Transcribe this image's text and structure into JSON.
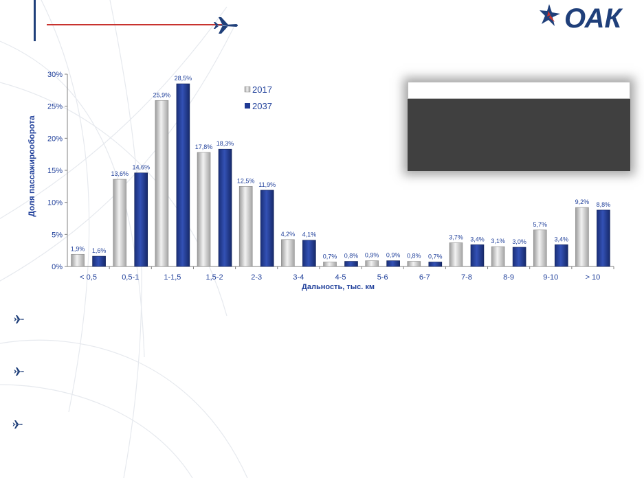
{
  "colors": {
    "brand_navy": "#1f3f7a",
    "brand_red": "#c8332e",
    "series_2017": "#c8c8c8",
    "series_2037": "#1f3a93",
    "axis_text": "#1f3f9a",
    "info_box_bg": "#404040"
  },
  "logo": {
    "text": "ОАК",
    "icon": "aircraft-star-logo-icon"
  },
  "header": {
    "icon": "airplane-icon"
  },
  "bullets": [
    {
      "icon": "airplane-bullet-icon"
    },
    {
      "icon": "airplane-bullet-icon"
    },
    {
      "icon": "airplane-bullet-icon"
    }
  ],
  "chart_data": {
    "type": "bar",
    "categories": [
      "< 0,5",
      "0,5-1",
      "1-1,5",
      "1,5-2",
      "2-3",
      "3-4",
      "4-5",
      "5-6",
      "6-7",
      "7-8",
      "8-9",
      "9-10",
      "> 10"
    ],
    "series": [
      {
        "name": "2017",
        "values": [
          1.9,
          13.6,
          25.9,
          17.8,
          12.5,
          4.2,
          0.7,
          0.9,
          0.8,
          3.7,
          3.1,
          5.7,
          9.2
        ],
        "labels": [
          "1,9%",
          "13,6%",
          "25,9%",
          "17,8%",
          "12,5%",
          "4,2%",
          "0,7%",
          "0,9%",
          "0,8%",
          "3,7%",
          "3,1%",
          "5,7%",
          "9,2%"
        ]
      },
      {
        "name": "2037",
        "values": [
          1.6,
          14.6,
          28.5,
          18.3,
          11.9,
          4.1,
          0.8,
          0.9,
          0.7,
          3.4,
          3.0,
          3.4,
          8.8
        ],
        "labels": [
          "1,6%",
          "14,6%",
          "28,5%",
          "18,3%",
          "11,9%",
          "4,1%",
          "0,8%",
          "0,9%",
          "0,7%",
          "3,4%",
          "3,0%",
          "3,4%",
          "8,8%"
        ]
      }
    ],
    "xlabel": "Дальность, тыс. км",
    "ylabel": "Доля пассажирооборота",
    "ylim": [
      0,
      30
    ],
    "yticks": [
      "0%",
      "5%",
      "10%",
      "15%",
      "20%",
      "25%",
      "30%"
    ],
    "grid": false,
    "legend_position": "top-left-inside"
  }
}
